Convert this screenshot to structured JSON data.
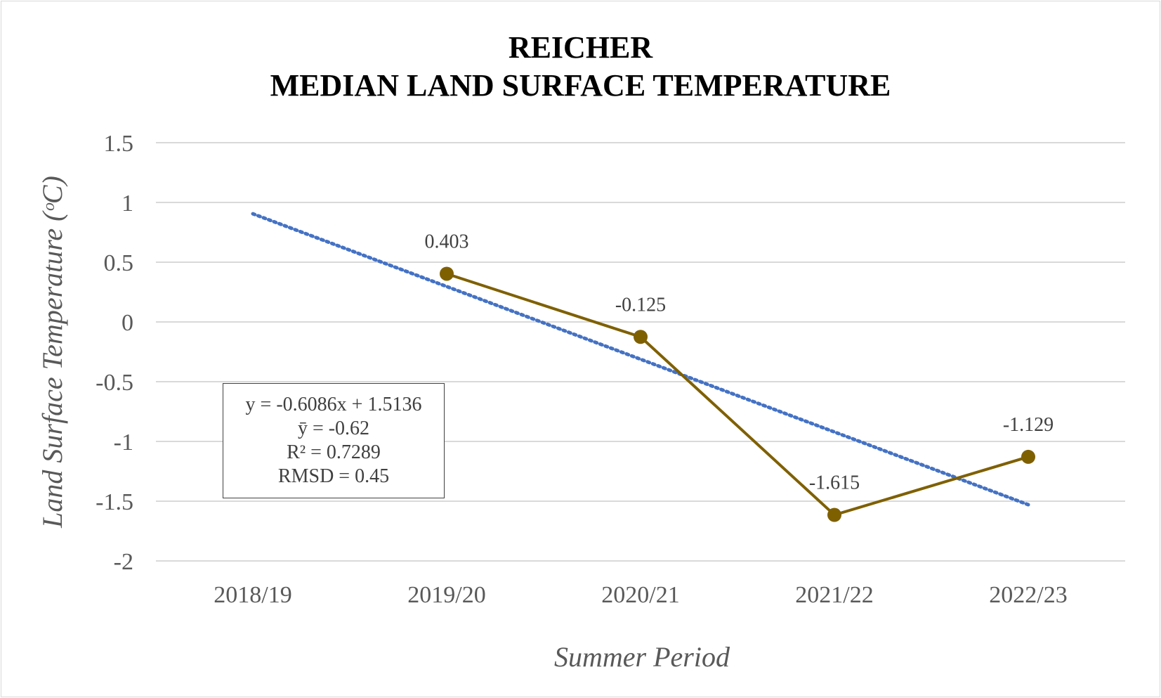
{
  "chart_data": {
    "type": "line",
    "title": [
      "REICHER",
      "MEDIAN LAND SURFACE TEMPERATURE"
    ],
    "xlabel": "Summer Period",
    "ylabel": "Land Surface Temperature (ᵒC)",
    "categories": [
      "2018/19",
      "2019/20",
      "2020/21",
      "2021/22",
      "2022/23"
    ],
    "yticks": [
      "1.5",
      "1",
      "0.5",
      "0",
      "-0.5",
      "-1",
      "-1.5",
      "-2"
    ],
    "ylim": [
      -2,
      1.5
    ],
    "grid": true,
    "series": [
      {
        "values": [
          null,
          0.403,
          -0.125,
          -1.615,
          -1.129
        ],
        "data_labels": [
          "",
          "0.403",
          "-0.125",
          "-1.615",
          "-1.129"
        ],
        "color": "#7f6000",
        "marker": "circle"
      }
    ],
    "trendline": {
      "type": "linear",
      "slope": -0.6086,
      "intercept": 1.5136,
      "color": "#4472c4",
      "style": "dotted"
    },
    "stats_box": [
      "y = -0.6086x + 1.5136",
      "ȳ = -0.62",
      "R² = 0.7289",
      "RMSD = 0.45"
    ]
  }
}
